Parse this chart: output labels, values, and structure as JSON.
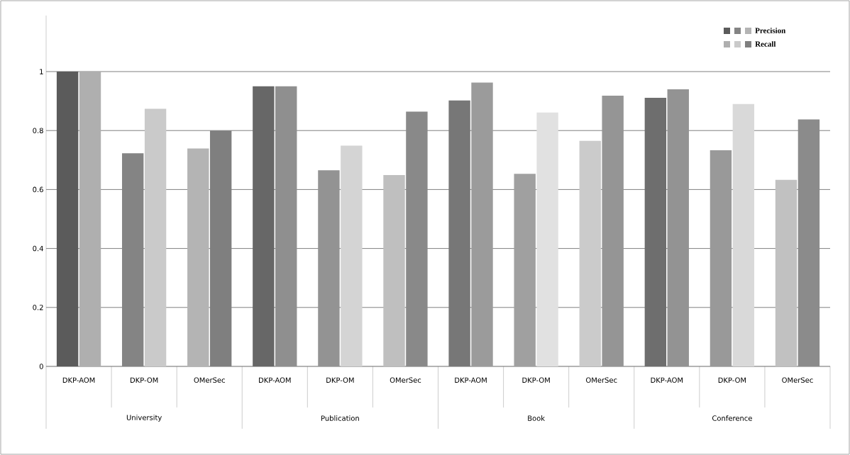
{
  "chart_data": {
    "type": "bar",
    "categories": [
      "DKP-AOM",
      "DKP-OM",
      "OMerSec",
      "DKP-AOM",
      "DKP-OM",
      "OMerSec",
      "DKP-AOM",
      "DKP-OM",
      "OMerSec",
      "DKP-AOM",
      "DKP-OM",
      "OMerSec"
    ],
    "series": [
      {
        "name": "Precision",
        "values": [
          1.0,
          0.723,
          0.739,
          0.95,
          0.665,
          0.649,
          0.902,
          0.653,
          0.765,
          0.911,
          0.733,
          0.633
        ],
        "colors": [
          "#5b5b5b",
          "#848484",
          "#b4b4b4",
          "#676767",
          "#939393",
          "#bfbfbf",
          "#777777",
          "#a0a0a0",
          "#cbcbcb",
          "#6e6e6e",
          "#999999",
          "#c1c1c1"
        ]
      },
      {
        "name": "Recall",
        "values": [
          1.0,
          0.874,
          0.8,
          0.95,
          0.749,
          0.864,
          0.963,
          0.861,
          0.918,
          0.94,
          0.89,
          0.838
        ],
        "colors": [
          "#afafaf",
          "#cacaca",
          "#7f7f7f",
          "#8f8f8f",
          "#d4d4d4",
          "#898989",
          "#9b9b9b",
          "#e1e1e1",
          "#959595",
          "#939393",
          "#d9d9d9",
          "#8b8b8b"
        ]
      }
    ],
    "annotations": [
      "University",
      "Publication",
      "Book",
      "Conference"
    ],
    "ylim": [
      0,
      1.19
    ],
    "yticks": [
      0,
      0.2,
      0.4,
      0.6,
      0.8,
      1
    ],
    "grid": "y",
    "legend": "top right"
  }
}
